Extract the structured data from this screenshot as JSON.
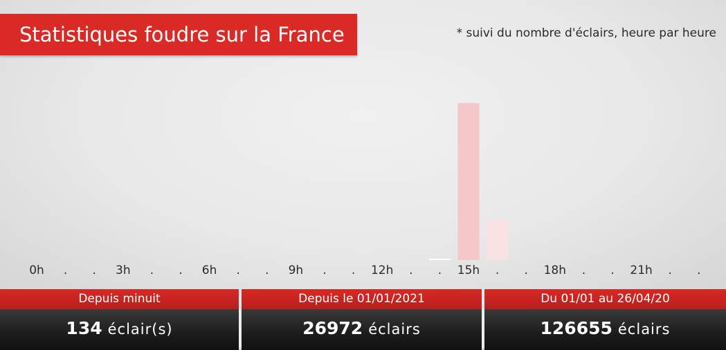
{
  "header": {
    "title": "Statistiques foudre sur la France",
    "subtitle": "* suivi du nombre d'éclairs, heure par heure"
  },
  "chart_data": {
    "type": "bar",
    "categories": [
      "0h",
      ".",
      ".",
      "3h",
      ".",
      ".",
      "6h",
      ".",
      ".",
      "9h",
      ".",
      ".",
      "12h",
      ".",
      ".",
      "15h",
      ".",
      ".",
      "18h",
      ".",
      ".",
      "21h",
      ".",
      "."
    ],
    "values": [
      0,
      0,
      0,
      0,
      0,
      0,
      0,
      0,
      0,
      0,
      0,
      0,
      0,
      0,
      0.3,
      100,
      26,
      0,
      0,
      0,
      0,
      0,
      0,
      0
    ],
    "current_hour_index": 16,
    "colors": {
      "bar": "#f4c7c8",
      "bar_current": "#f9e2e3",
      "bar_small": "#ffffff"
    },
    "title": "Statistiques foudre sur la France",
    "ylim": [
      0,
      100
    ]
  },
  "stats": [
    {
      "label": "Depuis minuit",
      "value": "134",
      "unit": "éclair(s)"
    },
    {
      "label": "Depuis le 01/01/2021",
      "value": "26972",
      "unit": "éclairs"
    },
    {
      "label": "Du 01/01 au 26/04/20",
      "value": "126655",
      "unit": "éclairs"
    }
  ]
}
